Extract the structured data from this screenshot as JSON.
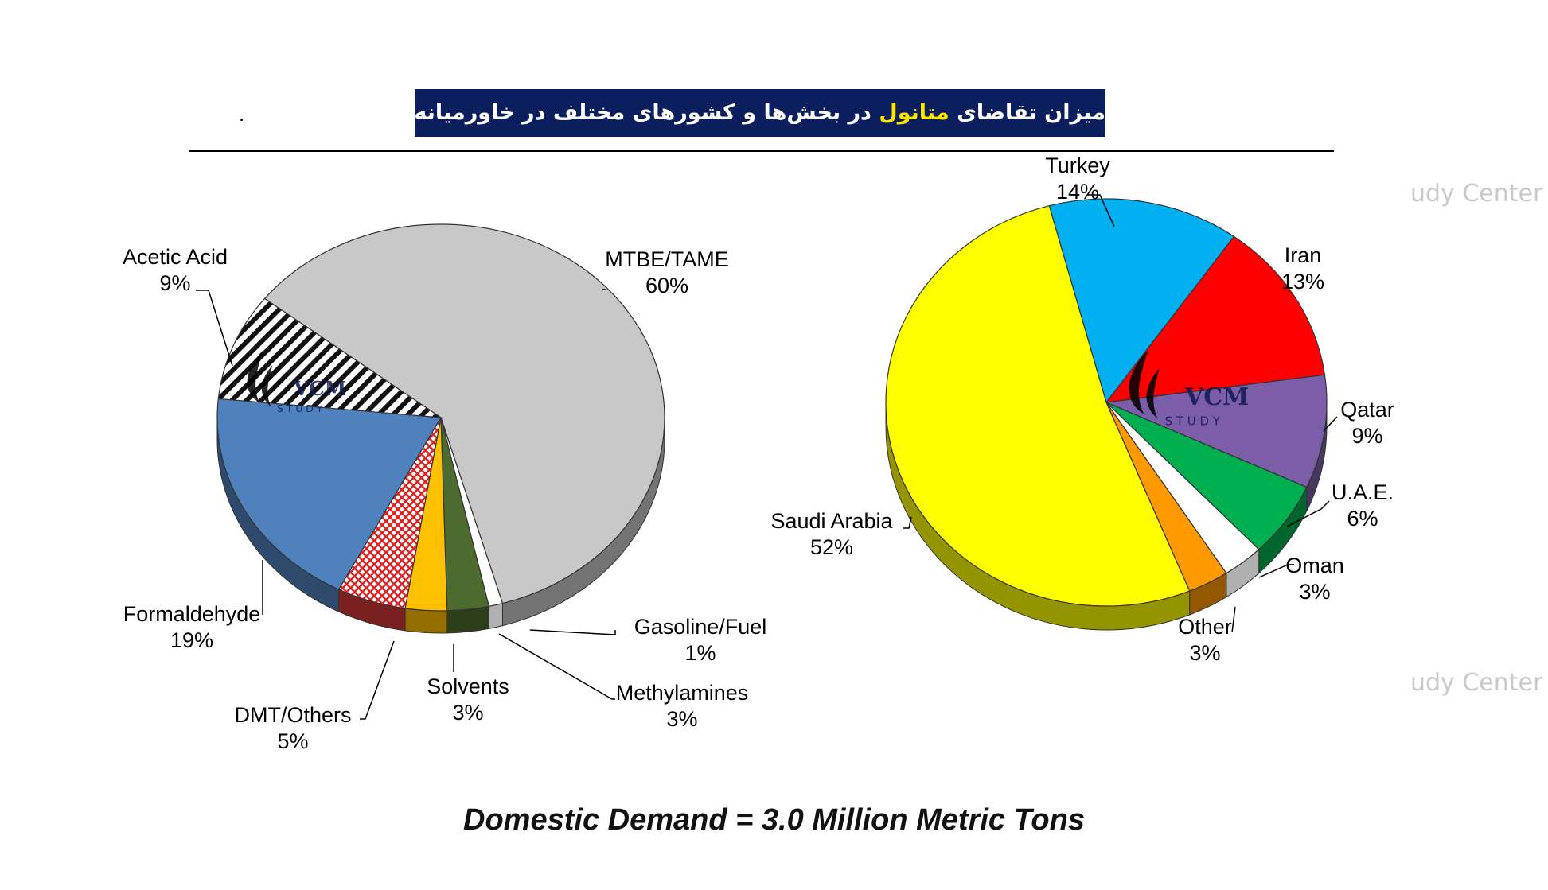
{
  "header": {
    "title_part1": "میزان تقاضای",
    "title_highlight": "متانول",
    "title_part2": "در بخش‌ها و کشورهای مختلف در خاورمیانه",
    "dot": "."
  },
  "watermarks": [
    "udy Center",
    "udy Center"
  ],
  "logo": {
    "text": "VCM",
    "subtext": "S T U D Y"
  },
  "footer": "Domestic Demand = 3.0 Million Metric Tons",
  "chart_data": [
    {
      "type": "pie",
      "title": "",
      "slices": [
        {
          "label": "MTBE/TAME",
          "value_label": "60%",
          "value": 60,
          "color": "#c8c8c8"
        },
        {
          "label": "Gasoline/Fuel",
          "value_label": "1%",
          "value": 1,
          "color": "#ffffff"
        },
        {
          "label": "Methylamines",
          "value_label": "3%",
          "value": 3,
          "color": "#4e6b2f"
        },
        {
          "label": "Solvents",
          "value_label": "3%",
          "value": 3,
          "color": "#ffc000"
        },
        {
          "label": "DMT/Others",
          "value_label": "5%",
          "value": 5,
          "color": "#e03030",
          "pattern": "crosshatch"
        },
        {
          "label": "Formaldehyde",
          "value_label": "19%",
          "value": 19,
          "color": "#4f81bd"
        },
        {
          "label": "Acetic Acid",
          "value_label": "9%",
          "value": 9,
          "color": "#ffffff",
          "pattern": "diagonal-stripes"
        }
      ]
    },
    {
      "type": "pie",
      "title": "",
      "slices": [
        {
          "label": "Turkey",
          "value_label": "14%",
          "value": 14,
          "color": "#00b0f0"
        },
        {
          "label": "Iran",
          "value_label": "13%",
          "value": 13,
          "color": "#ff0000"
        },
        {
          "label": "Qatar",
          "value_label": "9%",
          "value": 9,
          "color": "#7b5ea7"
        },
        {
          "label": "U.A.E.",
          "value_label": "6%",
          "value": 6,
          "color": "#00b050"
        },
        {
          "label": "Oman",
          "value_label": "3%",
          "value": 3,
          "color": "#ffffff"
        },
        {
          "label": "Other",
          "value_label": "3%",
          "value": 3,
          "color": "#ff9900"
        },
        {
          "label": "Saudi Arabia",
          "value_label": "52%",
          "value": 52,
          "color": "#ffff00"
        }
      ]
    }
  ]
}
